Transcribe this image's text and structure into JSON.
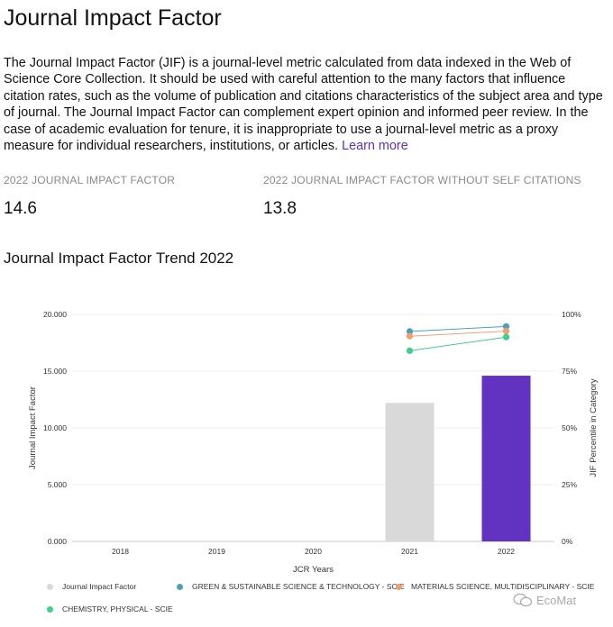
{
  "title": "Journal Impact Factor",
  "description": "The Journal Impact Factor (JIF) is a journal-level metric calculated from data indexed in the Web of Science Core Collection. It should be used with careful attention to the many factors that influence citation rates, such as the volume of publication and citations characteristics of the subject area and type of journal. The Journal Impact Factor can complement expert opinion and informed peer review. In the case of academic evaluation for tenure, it is inappropriate to use a journal-level metric as a proxy measure for individual researchers, institutions, or articles.",
  "learn_more": "Learn more",
  "metrics": {
    "jif_label": "2022 JOURNAL IMPACT FACTOR",
    "jif_value": "14.6",
    "jif_noself_label": "2022 JOURNAL IMPACT FACTOR WITHOUT SELF CITATIONS",
    "jif_noself_value": "13.8"
  },
  "trend_title": "Journal Impact Factor Trend 2022",
  "watermark": "EcoMat",
  "colors": {
    "bar_past": "#d9d9d9",
    "bar_current": "#6232c0",
    "green_sustainable": "#4aa3b5",
    "materials": "#f0a070",
    "chemistry": "#3ecf8e"
  },
  "chart_data": {
    "type": "bar",
    "xlabel": "JCR Years",
    "ylabel": "Journal Impact Factor",
    "y2label": "JIF Percentile in Category",
    "categories": [
      "2018",
      "2019",
      "2020",
      "2021",
      "2022"
    ],
    "ylim": [
      0,
      20
    ],
    "yticks": [
      "0.000",
      "5.000",
      "10.000",
      "15.000",
      "20.000"
    ],
    "y2ticks": [
      "0%",
      "25%",
      "50%",
      "75%",
      "100%"
    ],
    "bars": {
      "name": "Journal Impact Factor",
      "values": [
        null,
        null,
        null,
        12.2,
        14.6
      ]
    },
    "percentile_series": [
      {
        "name": "GREEN & SUSTAINABLE SCIENCE & TECHNOLOGY - SCIE",
        "color_key": "green_sustainable",
        "values": [
          null,
          null,
          null,
          92.5,
          94.7
        ]
      },
      {
        "name": "MATERIALS SCIENCE, MULTIDISCIPLINARY - SCIE",
        "color_key": "materials",
        "values": [
          null,
          null,
          null,
          90.4,
          92.6
        ]
      },
      {
        "name": "CHEMISTRY, PHYSICAL - SCIE",
        "color_key": "chemistry",
        "values": [
          null,
          null,
          null,
          84.0,
          90.0
        ]
      }
    ]
  }
}
